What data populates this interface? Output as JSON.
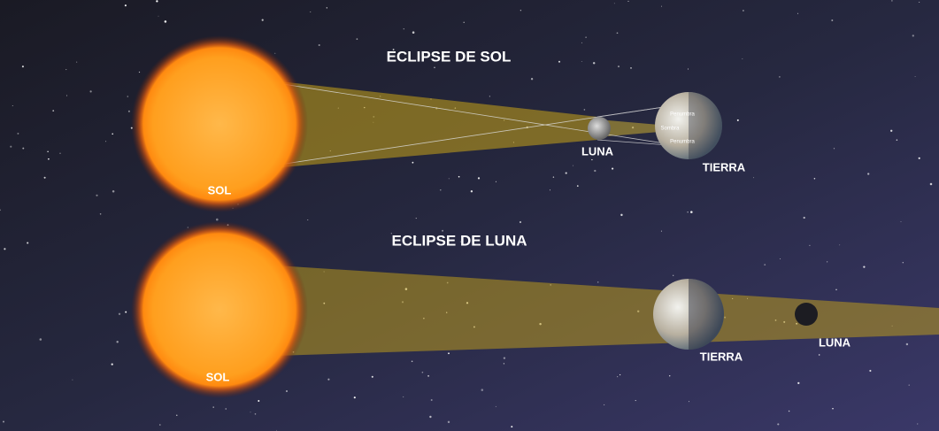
{
  "solar_eclipse": {
    "title": "ECLIPSE DE SOL",
    "sun": "SOL",
    "moon": "LUNA",
    "earth": "TIERRA",
    "zones": [
      "Penumbra",
      "Sombra",
      "Penumbra"
    ]
  },
  "lunar_eclipse": {
    "title": "ECLIPSE DE LUNA",
    "sun": "SOL",
    "earth": "TIERRA",
    "moon": "LUNA"
  }
}
